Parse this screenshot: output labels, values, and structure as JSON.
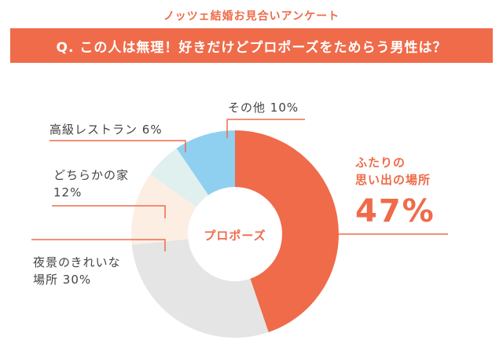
{
  "header": {
    "subtitle": "ノッツェ結婚お見合いアンケート",
    "question": "Q. この人は無理！好きだけどプロポーズをためらう男性は？"
  },
  "chart_data": {
    "type": "pie",
    "title": "Q. この人は無理！好きだけどプロポーズをためらう男性は？",
    "center_label": "プロポーズ",
    "slices": [
      {
        "label_line1": "ふたりの",
        "label_line2": "思い出の場所",
        "value": 47,
        "value_text": "47%",
        "color": "#ef6b4a"
      },
      {
        "label_line1": "夜景のきれいな",
        "label_line2": "場所",
        "value": 30,
        "value_text": "30%",
        "color": "#e5e5e5"
      },
      {
        "label_line1": "どちらかの家",
        "label_line2": "",
        "value": 12,
        "value_text": "12%",
        "color": "#fdeee4"
      },
      {
        "label_line1": "高級レストラン",
        "label_line2": "",
        "value": 6,
        "value_text": "6%",
        "color": "#dff0ef"
      },
      {
        "label_line1": "その他",
        "label_line2": "",
        "value": 10,
        "value_text": "10%",
        "color": "#8fd0f0"
      }
    ]
  }
}
